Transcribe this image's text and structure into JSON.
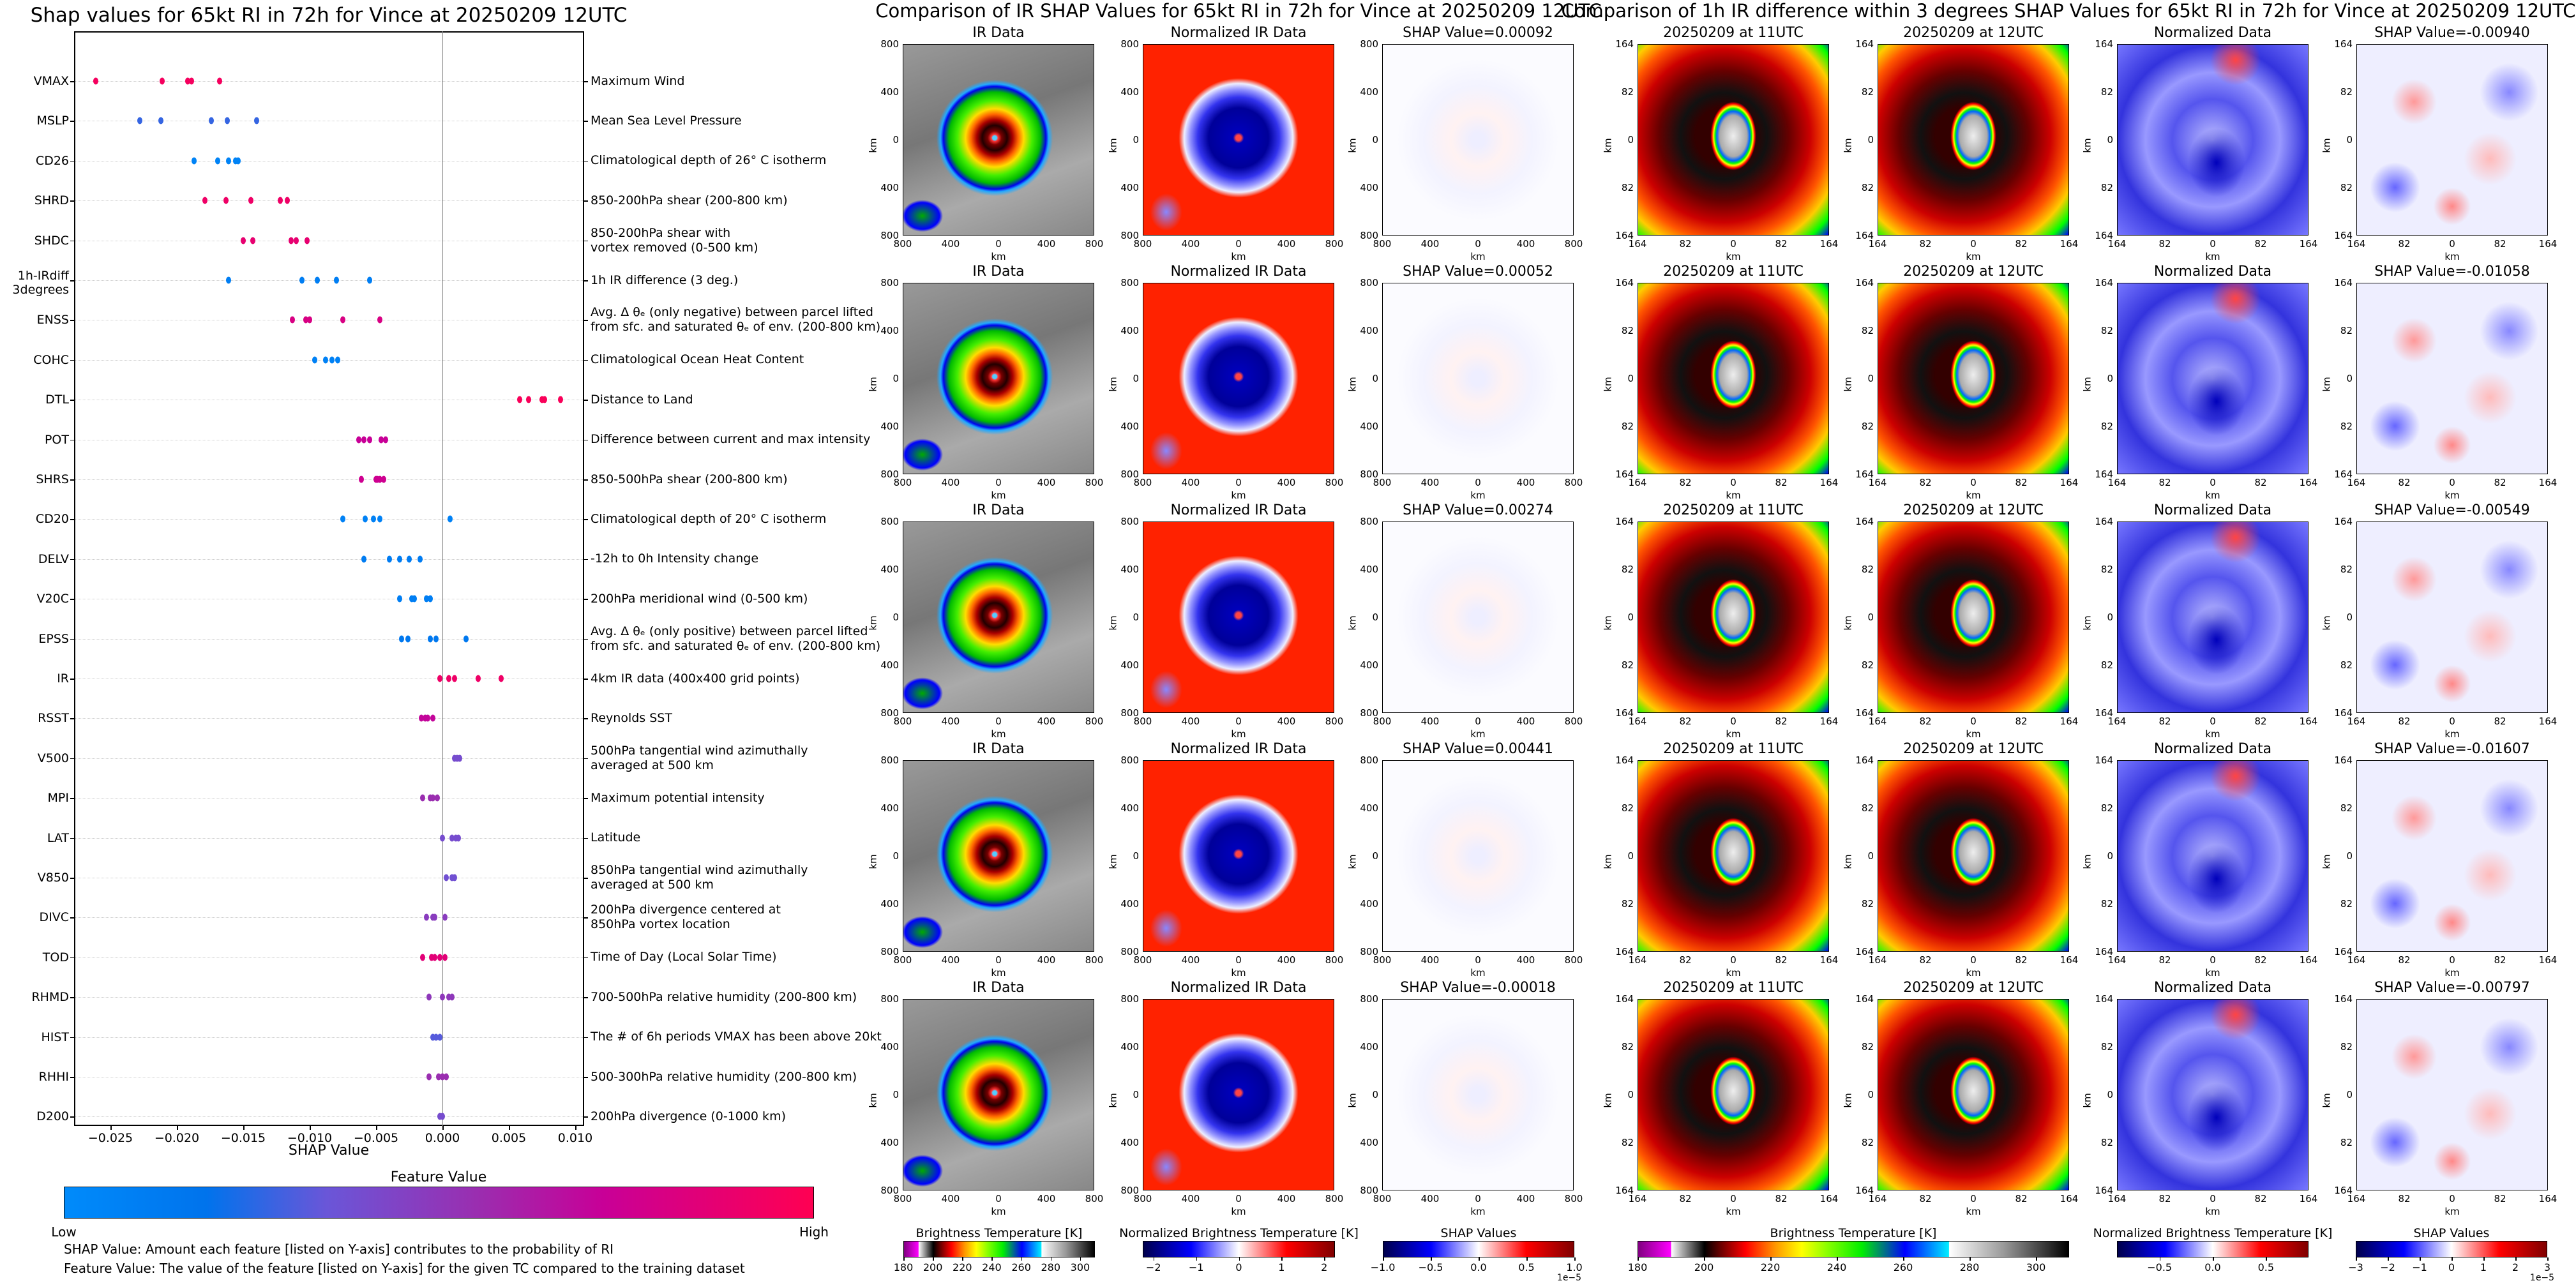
{
  "left": {
    "title": "Shap values for 65kt RI in 72h for Vince at 20250209 12UTC",
    "xlabel": "SHAP Value",
    "xticks": [
      {
        "value": -0.025,
        "label": "−0.025"
      },
      {
        "value": -0.02,
        "label": "−0.020"
      },
      {
        "value": -0.015,
        "label": "−0.015"
      },
      {
        "value": -0.01,
        "label": "−0.010"
      },
      {
        "value": -0.005,
        "label": "−0.005"
      },
      {
        "value": 0.0,
        "label": "0.000"
      },
      {
        "value": 0.005,
        "label": "0.005"
      },
      {
        "value": 0.01,
        "label": "0.010"
      }
    ],
    "colorbar_title": "Feature Value",
    "colorbar_low": "Low",
    "colorbar_high": "High",
    "colorbar_colors": [
      "#008bfb",
      "#0073ec",
      "#6a56d8",
      "#9a2eb0",
      "#c80097",
      "#ff0052"
    ],
    "notes": [
      "SHAP Value: Amount each feature [listed on Y-axis] contributes to the probability of RI",
      "Feature Value: The value of the feature [listed on Y-axis] for the given TC compared to the training dataset"
    ]
  },
  "chart_data": {
    "type": "scatter",
    "title": "Shap values for 65kt RI in 72h for Vince at 20250209 12UTC",
    "xlabel": "SHAP Value",
    "xlim": [
      -0.0277,
      0.0107
    ],
    "grid": "horizontal dotted per feature",
    "features": [
      {
        "code": "VMAX",
        "desc": [
          "Maximum Wind"
        ],
        "feature_value": 0.95,
        "shap": [
          -0.0261,
          -0.0211,
          -0.0192,
          -0.0189,
          -0.0168
        ]
      },
      {
        "code": "MSLP",
        "desc": [
          "Mean Sea Level Pressure"
        ],
        "feature_value": 0.27,
        "shap": [
          -0.0228,
          -0.0212,
          -0.0174,
          -0.0162,
          -0.014
        ]
      },
      {
        "code": "CD26",
        "desc": [
          "Climatological depth of 26° C isotherm"
        ],
        "feature_value": 0.06,
        "shap": [
          -0.0187,
          -0.0169,
          -0.0161,
          -0.0156,
          -0.0154
        ]
      },
      {
        "code": "SHRD",
        "desc": [
          "850-200hPa shear (200-800 km)"
        ],
        "feature_value": 0.92,
        "shap": [
          -0.0179,
          -0.0163,
          -0.0144,
          -0.0122,
          -0.0117
        ]
      },
      {
        "code": "SHDC",
        "desc": [
          "850-200hPa shear with",
          "vortex removed (0-500 km)"
        ],
        "feature_value": 0.88,
        "shap": [
          -0.015,
          -0.0143,
          -0.0114,
          -0.011,
          -0.0102
        ]
      },
      {
        "code": "1h-IRdiff\n3degrees",
        "desc": [
          "1h IR difference (3 deg.)"
        ],
        "feature_value": 0.1,
        "shap": [
          -0.0161,
          -0.0106,
          -0.0094,
          -0.008,
          -0.0055
        ]
      },
      {
        "code": "ENSS",
        "desc": [
          "Avg. Δ θₑ (only negative) between parcel lifted",
          "from sfc. and saturated θₑ of env. (200-800 km)"
        ],
        "feature_value": 0.8,
        "shap": [
          -0.0113,
          -0.0103,
          -0.01,
          -0.0075,
          -0.0047
        ]
      },
      {
        "code": "COHC",
        "desc": [
          "Climatological Ocean Heat Content"
        ],
        "feature_value": 0.08,
        "shap": [
          -0.0096,
          -0.0088,
          -0.0083,
          -0.0079
        ]
      },
      {
        "code": "DTL",
        "desc": [
          "Distance to Land"
        ],
        "feature_value": 0.97,
        "shap": [
          0.0058,
          0.0065,
          0.0075,
          0.0077,
          0.0089
        ]
      },
      {
        "code": "POT",
        "desc": [
          "Difference between current and max intensity"
        ],
        "feature_value": 0.72,
        "shap": [
          -0.0063,
          -0.0059,
          -0.0055,
          -0.0046,
          -0.0043
        ]
      },
      {
        "code": "SHRS",
        "desc": [
          "850-500hPa shear (200-800 km)"
        ],
        "feature_value": 0.75,
        "shap": [
          -0.0061,
          -0.005,
          -0.0049,
          -0.0047,
          -0.0044
        ]
      },
      {
        "code": "CD20",
        "desc": [
          "Climatological depth of 20° C isotherm"
        ],
        "feature_value": 0.08,
        "shap": [
          -0.0075,
          -0.0058,
          -0.0052,
          -0.0047,
          0.0006
        ]
      },
      {
        "code": "DELV",
        "desc": [
          "-12h to 0h Intensity change"
        ],
        "feature_value": 0.12,
        "shap": [
          -0.0059,
          -0.004,
          -0.0032,
          -0.0025,
          -0.0017
        ]
      },
      {
        "code": "V20C",
        "desc": [
          "200hPa meridional wind (0-500 km)"
        ],
        "feature_value": 0.1,
        "shap": [
          -0.0032,
          -0.0023,
          -0.0021,
          -0.0012,
          -0.0009
        ]
      },
      {
        "code": "EPSS",
        "desc": [
          "Avg. Δ θₑ (only positive) between parcel lifted",
          "from sfc. and saturated θₑ of env. (200-800 km)"
        ],
        "feature_value": 0.15,
        "shap": [
          -0.0031,
          -0.0026,
          -0.0009,
          -0.0005,
          0.0018
        ]
      },
      {
        "code": "IR",
        "desc": [
          "4km IR data (400x400 grid points)"
        ],
        "feature_value": 0.92,
        "shap": [
          -0.0002,
          0.0005,
          0.0009,
          0.0027,
          0.0044
        ]
      },
      {
        "code": "RSST",
        "desc": [
          "Reynolds SST"
        ],
        "feature_value": 0.7,
        "shap": [
          -0.0016,
          -0.0013,
          -0.0011,
          -0.0007
        ]
      },
      {
        "code": "V500",
        "desc": [
          "500hPa tangential wind azimuthally",
          "averaged at 500 km"
        ],
        "feature_value": 0.4,
        "shap": [
          0.0009,
          0.0011,
          0.0013
        ]
      },
      {
        "code": "MPI",
        "desc": [
          "Maximum potential intensity"
        ],
        "feature_value": 0.55,
        "shap": [
          -0.0015,
          -0.0009,
          -0.0007,
          -0.0004
        ]
      },
      {
        "code": "LAT",
        "desc": [
          "Latitude"
        ],
        "feature_value": 0.4,
        "shap": [
          0.0,
          0.0007,
          0.001,
          0.0012
        ]
      },
      {
        "code": "V850",
        "desc": [
          "850hPa tangential wind azimuthally",
          "averaged at 500 km"
        ],
        "feature_value": 0.38,
        "shap": [
          0.0003,
          0.0007,
          0.0009
        ]
      },
      {
        "code": "DIVC",
        "desc": [
          "200hPa divergence centered at",
          "850hPa vortex location"
        ],
        "feature_value": 0.48,
        "shap": [
          -0.0012,
          -0.0007,
          -0.0006,
          0.0002
        ]
      },
      {
        "code": "TOD",
        "desc": [
          "Time of Day (Local Solar Time)"
        ],
        "feature_value": 0.85,
        "shap": [
          -0.0015,
          -0.0008,
          -0.0006,
          -0.0002,
          0.0002
        ]
      },
      {
        "code": "RHMD",
        "desc": [
          "700-500hPa relative humidity (200-800 km)"
        ],
        "feature_value": 0.5,
        "shap": [
          -0.001,
          0.0,
          0.0005,
          0.0007
        ]
      },
      {
        "code": "HIST",
        "desc": [
          "The # of 6h periods VMAX has been above 20kt"
        ],
        "feature_value": 0.32,
        "shap": [
          -0.0007,
          -0.0005,
          -0.0002
        ]
      },
      {
        "code": "RHHI",
        "desc": [
          "500-300hPa relative humidity (200-800 km)"
        ],
        "feature_value": 0.55,
        "shap": [
          -0.001,
          -0.0003,
          0.0,
          0.0003
        ]
      },
      {
        "code": "D200",
        "desc": [
          "200hPa divergence (0-1000 km)"
        ],
        "feature_value": 0.4,
        "shap": [
          -0.0002,
          0.0
        ]
      }
    ]
  },
  "right": {
    "ir_title": "Comparison of IR SHAP Values for 65kt RI in 72h for Vince at 20250209 12UTC",
    "diff_title": "Comparison of 1h IR difference within 3 degrees SHAP Values for 65kt RI in 72h for Vince at 20250209 12UTC",
    "axis_unit": "km",
    "ir_ticks": [
      "800",
      "400",
      "0",
      "400",
      "800"
    ],
    "diff_ticks": [
      "164",
      "82",
      "0",
      "82",
      "164"
    ],
    "columns": [
      "IR Data",
      "Normalized IR Data",
      "SHAP",
      "20250209 at 11UTC",
      "20250209 at 12UTC",
      "Normalized Data",
      "SHAP"
    ],
    "rows": [
      {
        "ir_shap": "SHAP Value=0.00092",
        "diff_shap": "SHAP Value=-0.00940"
      },
      {
        "ir_shap": "SHAP Value=0.00052",
        "diff_shap": "SHAP Value=-0.01058"
      },
      {
        "ir_shap": "SHAP Value=0.00274",
        "diff_shap": "SHAP Value=-0.00549"
      },
      {
        "ir_shap": "SHAP Value=0.00441",
        "diff_shap": "SHAP Value=-0.01607"
      },
      {
        "ir_shap": "SHAP Value=-0.00018",
        "diff_shap": "SHAP Value=-0.00797"
      }
    ],
    "colorbars": [
      {
        "title": "Brightness Temperature [K]",
        "range": [
          180,
          310
        ],
        "cmap": "bt",
        "ticks": [
          {
            "v": 180,
            "l": "180"
          },
          {
            "v": 200,
            "l": "200"
          },
          {
            "v": 220,
            "l": "220"
          },
          {
            "v": 240,
            "l": "240"
          },
          {
            "v": 260,
            "l": "260"
          },
          {
            "v": 280,
            "l": "280"
          },
          {
            "v": 300,
            "l": "300"
          }
        ],
        "offset": ""
      },
      {
        "title": "Normalized Brightness Temperature [K]",
        "range": [
          -2.25,
          2.25
        ],
        "cmap": "seismic",
        "ticks": [
          {
            "v": -2,
            "l": "−2"
          },
          {
            "v": -1,
            "l": "−1"
          },
          {
            "v": 0,
            "l": "0"
          },
          {
            "v": 1,
            "l": "1"
          },
          {
            "v": 2,
            "l": "2"
          }
        ],
        "offset": ""
      },
      {
        "title": "SHAP Values",
        "range": [
          -1,
          1
        ],
        "cmap": "seismic",
        "ticks": [
          {
            "v": -1,
            "l": "−1.0"
          },
          {
            "v": -0.5,
            "l": "−0.5"
          },
          {
            "v": 0,
            "l": "0.0"
          },
          {
            "v": 0.5,
            "l": "0.5"
          },
          {
            "v": 1,
            "l": "1.0"
          }
        ],
        "offset": "1e−5"
      },
      {
        "title": "Brightness Temperature [K]",
        "range": [
          180,
          310
        ],
        "cmap": "bt",
        "ticks": [
          {
            "v": 180,
            "l": "180"
          },
          {
            "v": 200,
            "l": "200"
          },
          {
            "v": 220,
            "l": "220"
          },
          {
            "v": 240,
            "l": "240"
          },
          {
            "v": 260,
            "l": "260"
          },
          {
            "v": 280,
            "l": "280"
          },
          {
            "v": 300,
            "l": "300"
          }
        ],
        "offset": ""
      },
      {
        "title": "Normalized Brightness Temperature [K]",
        "range": [
          -0.9,
          0.9
        ],
        "cmap": "seismic",
        "ticks": [
          {
            "v": -0.5,
            "l": "−0.5"
          },
          {
            "v": 0,
            "l": "0.0"
          },
          {
            "v": 0.5,
            "l": "0.5"
          }
        ],
        "offset": ""
      },
      {
        "title": "SHAP Values",
        "range": [
          -3,
          3
        ],
        "cmap": "seismic",
        "ticks": [
          {
            "v": -3,
            "l": "−3"
          },
          {
            "v": -2,
            "l": "−2"
          },
          {
            "v": -1,
            "l": "−1"
          },
          {
            "v": 0,
            "l": "0"
          },
          {
            "v": 1,
            "l": "1"
          },
          {
            "v": 2,
            "l": "2"
          },
          {
            "v": 3,
            "l": "3"
          }
        ],
        "offset": "1e−5"
      }
    ]
  }
}
